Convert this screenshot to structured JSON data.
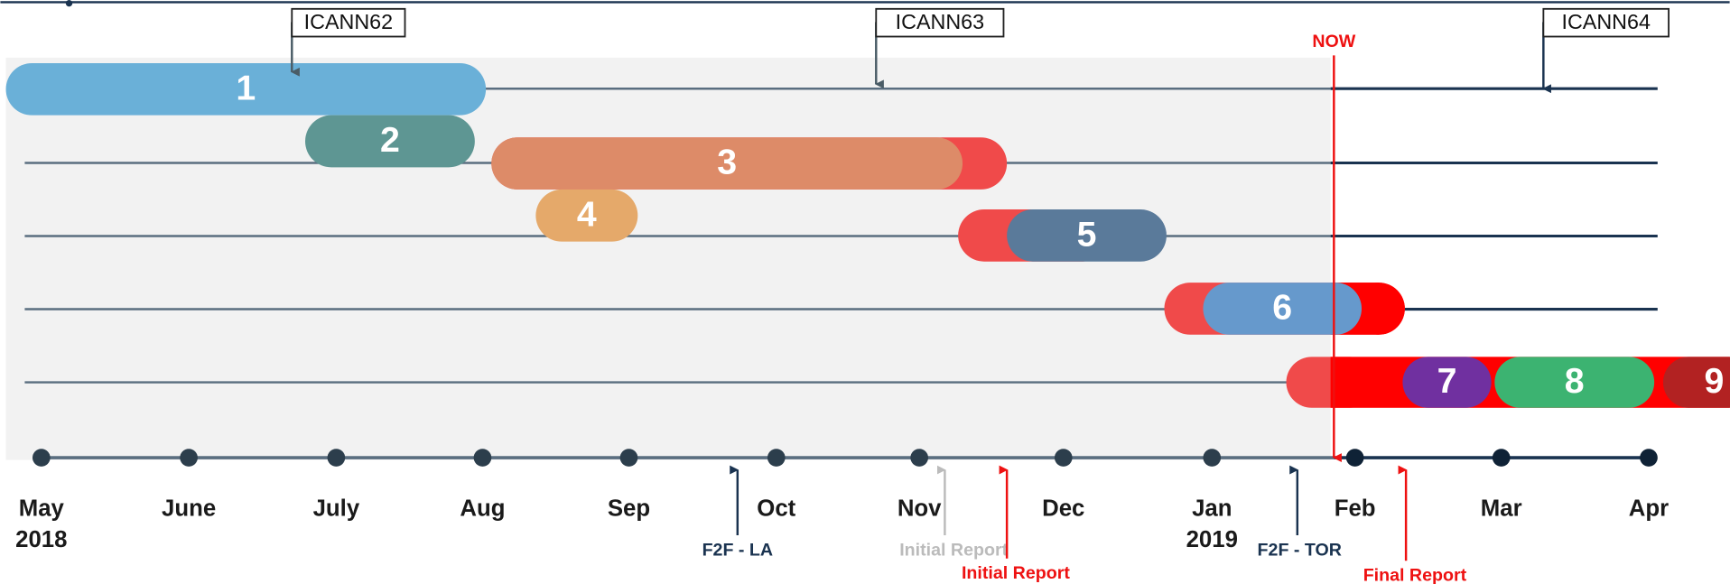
{
  "meetings": [
    "ICANN62",
    "ICANN63",
    "ICANN64"
  ],
  "now": "NOW",
  "months": [
    {
      "name": "May",
      "year": "2018"
    },
    {
      "name": "June"
    },
    {
      "name": "July"
    },
    {
      "name": "Aug"
    },
    {
      "name": "Sep"
    },
    {
      "name": "Oct"
    },
    {
      "name": "Nov"
    },
    {
      "name": "Dec"
    },
    {
      "name": "Jan",
      "year": "2019"
    },
    {
      "name": "Feb"
    },
    {
      "name": "Mar"
    },
    {
      "name": "Apr"
    }
  ],
  "bars": [
    "1",
    "2",
    "3",
    "4",
    "5",
    "6",
    "7",
    "8",
    "9"
  ],
  "annotations": [
    "F2F - LA",
    "Initial Report",
    "Initial Report",
    "F2F - TOR",
    "Final Report"
  ]
}
